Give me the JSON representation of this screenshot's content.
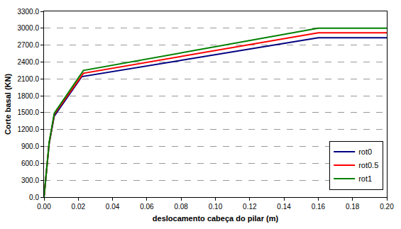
{
  "chart_data": {
    "type": "line",
    "x_label": "deslocamento cabeça do pilar (m)",
    "y_label": "Corte basal (KN)",
    "series": [
      {
        "name": "rot0",
        "color": "#000080",
        "x": [
          0,
          0.003,
          0.006,
          0.022,
          0.16,
          0.2
        ],
        "values": [
          0,
          950,
          1440,
          2140,
          2830,
          2830
        ]
      },
      {
        "name": "rot0.5",
        "color": "#ff0000",
        "x": [
          0,
          0.003,
          0.006,
          0.023,
          0.16,
          0.2
        ],
        "values": [
          0,
          960,
          1470,
          2200,
          2920,
          2920
        ]
      },
      {
        "name": "rot1",
        "color": "#008000",
        "x": [
          0,
          0.003,
          0.006,
          0.023,
          0.16,
          0.2
        ],
        "values": [
          0,
          970,
          1490,
          2250,
          3000,
          3000
        ]
      }
    ],
    "xlim": [
      0,
      0.2
    ],
    "xticks": [
      {
        "value": 0,
        "label": "0.00"
      },
      {
        "value": 0.02,
        "label": "0.02"
      },
      {
        "value": 0.04,
        "label": "0.04"
      },
      {
        "value": 0.06,
        "label": "0.06"
      },
      {
        "value": 0.08,
        "label": "0.08"
      },
      {
        "value": 0.1,
        "label": "0.10"
      },
      {
        "value": 0.12,
        "label": "0.12"
      },
      {
        "value": 0.14,
        "label": "0.14"
      },
      {
        "value": 0.16,
        "label": "0.16"
      },
      {
        "value": 0.18,
        "label": "0.18"
      },
      {
        "value": 0.2,
        "label": "0.20"
      }
    ],
    "ylim": [
      0,
      3300
    ],
    "yticks": [
      {
        "value": 0,
        "label": "0.0"
      },
      {
        "value": 300,
        "label": "300.0"
      },
      {
        "value": 600,
        "label": "600.0"
      },
      {
        "value": 900,
        "label": "900.0"
      },
      {
        "value": 1200,
        "label": "1200.0"
      },
      {
        "value": 1500,
        "label": "1500.0"
      },
      {
        "value": 1800,
        "label": "1800.0"
      },
      {
        "value": 2100,
        "label": "2100.0"
      },
      {
        "value": 2400,
        "label": "2400.0"
      },
      {
        "value": 2700,
        "label": "2700.0"
      },
      {
        "value": 3000,
        "label": "3000.0"
      },
      {
        "value": 3300,
        "label": "3300.0"
      }
    ],
    "grid": true,
    "legend": "lower right"
  }
}
